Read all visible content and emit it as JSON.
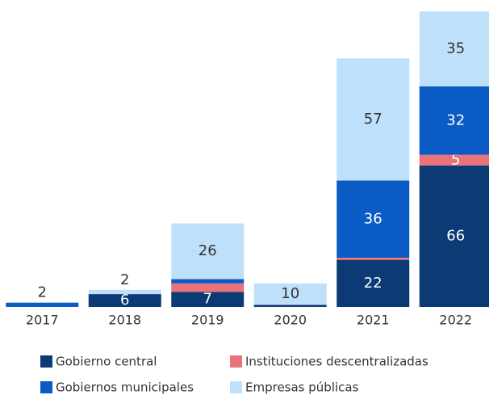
{
  "chart_data": {
    "type": "stacked_bar",
    "categories": [
      "2017",
      "2018",
      "2019",
      "2020",
      "2021",
      "2022"
    ],
    "series": [
      {
        "name": "Gobierno central",
        "color": "#0b3a74",
        "values": [
          0,
          6,
          7,
          1,
          22,
          66
        ],
        "value_labels": [
          null,
          "6",
          "7",
          null,
          "22",
          "66"
        ]
      },
      {
        "name": "Instituciones descentralizadas",
        "color": "#e8737a",
        "values": [
          0,
          0,
          4,
          0,
          1,
          5
        ],
        "value_labels": [
          null,
          null,
          null,
          null,
          null,
          "5"
        ]
      },
      {
        "name": "Gobiernos municipales",
        "color": "#0b5bc6",
        "values": [
          2,
          0,
          2,
          0,
          36,
          32
        ],
        "value_labels": [
          "2",
          null,
          null,
          null,
          "36",
          "32"
        ]
      },
      {
        "name": "Empresas públicas",
        "color": "#bfe0fb",
        "values": [
          0,
          2,
          26,
          10,
          57,
          35
        ],
        "value_labels": [
          null,
          "2",
          "26",
          "10",
          "57",
          "35"
        ]
      }
    ]
  }
}
